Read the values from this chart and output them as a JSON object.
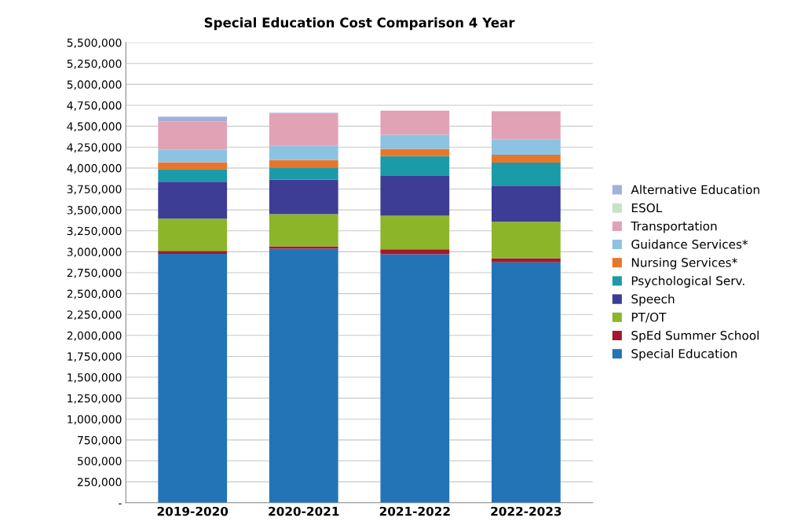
{
  "chart_data": {
    "type": "bar",
    "title": "Special Education Cost Comparison 4 Year",
    "stacked": true,
    "categories": [
      "2019-2020",
      "2020-2021",
      "2021-2022",
      "2022-2023"
    ],
    "series": [
      {
        "name": "Special Education",
        "color": "#2274b6",
        "values": [
          2975000,
          3035000,
          2971000,
          2874000
        ]
      },
      {
        "name": "SpEd Summer School",
        "color": "#a3182f",
        "values": [
          35000,
          29000,
          58000,
          47000
        ]
      },
      {
        "name": "PT/OT",
        "color": "#8db52a",
        "values": [
          385000,
          385000,
          401000,
          437000
        ]
      },
      {
        "name": "Speech",
        "color": "#3d3d95",
        "values": [
          441000,
          412000,
          474000,
          431000
        ]
      },
      {
        "name": "Psychological Serv.",
        "color": "#1b9aa8",
        "values": [
          144000,
          144000,
          237000,
          276000
        ]
      },
      {
        "name": "Nursing Services*",
        "color": "#e8762a",
        "values": [
          89000,
          89000,
          89000,
          94000
        ]
      },
      {
        "name": "Guidance Services*",
        "color": "#8cc2e2",
        "values": [
          151000,
          169000,
          169000,
          186000
        ]
      },
      {
        "name": "Transportation",
        "color": "#e2a2b6",
        "values": [
          341000,
          387000,
          288000,
          334000
        ]
      },
      {
        "name": "ESOL",
        "color": "#c6e2c8",
        "values": [
          0,
          0,
          0,
          0
        ]
      },
      {
        "name": "Alternative Education",
        "color": "#a2b0da",
        "values": [
          54000,
          10000,
          0,
          0
        ]
      }
    ],
    "ylim": [
      0,
      5500000
    ],
    "yticks": [
      {
        "value": 0,
        "label": "-"
      },
      {
        "value": 250000,
        "label": "250,000"
      },
      {
        "value": 500000,
        "label": "500,000"
      },
      {
        "value": 750000,
        "label": "750,000"
      },
      {
        "value": 1000000,
        "label": "1,000,000"
      },
      {
        "value": 1250000,
        "label": "1,250,000"
      },
      {
        "value": 1500000,
        "label": "1,500,000"
      },
      {
        "value": 1750000,
        "label": "1,750,000"
      },
      {
        "value": 2000000,
        "label": "2,000,000"
      },
      {
        "value": 2250000,
        "label": "2,250,000"
      },
      {
        "value": 2500000,
        "label": "2,500,000"
      },
      {
        "value": 2750000,
        "label": "2,750,000"
      },
      {
        "value": 3000000,
        "label": "3,000,000"
      },
      {
        "value": 3250000,
        "label": "3,250,000"
      },
      {
        "value": 3500000,
        "label": "3,500,000"
      },
      {
        "value": 3750000,
        "label": "3,750,000"
      },
      {
        "value": 4000000,
        "label": "4,000,000"
      },
      {
        "value": 4250000,
        "label": "4,250,000"
      },
      {
        "value": 4500000,
        "label": "4,500,000"
      },
      {
        "value": 4750000,
        "label": "4,750,000"
      },
      {
        "value": 5000000,
        "label": "5,000,000"
      },
      {
        "value": 5250000,
        "label": "5,250,000"
      },
      {
        "value": 5500000,
        "label": "5,500,000"
      }
    ],
    "grid": "y",
    "legend": "right"
  }
}
